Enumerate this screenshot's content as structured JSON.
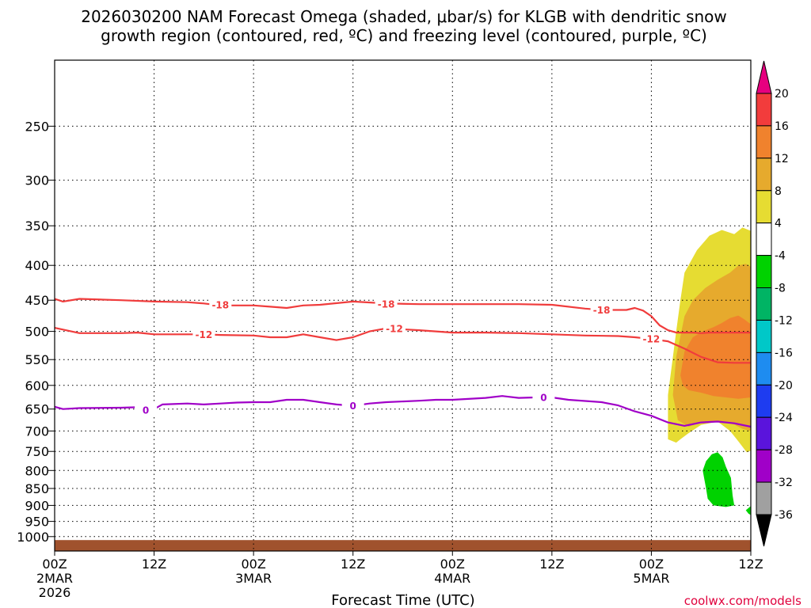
{
  "chart_data": {
    "type": "time-height-contour",
    "title_line1": "2026030200 NAM Forecast Omega (shaded, μbar/s) for KLGB with dendritic snow",
    "title_line2": "growth region (contoured, red, ºC) and freezing level (contoured, purple, ºC)",
    "xlabel": "Forecast Time (UTC)",
    "credit": "coolwx.com/models",
    "x_range_hours": [
      0,
      84
    ],
    "y_scale": "log-pressure",
    "y_range_hpa": [
      1050,
      200
    ],
    "y_ticks": [
      250,
      300,
      350,
      400,
      450,
      500,
      550,
      600,
      650,
      700,
      750,
      800,
      850,
      900,
      950,
      1000
    ],
    "x_ticks": [
      {
        "hour": 0,
        "line1": "00Z",
        "line2": "2MAR",
        "line3": "2026"
      },
      {
        "hour": 12,
        "line1": "12Z",
        "line2": "",
        "line3": ""
      },
      {
        "hour": 24,
        "line1": "00Z",
        "line2": "3MAR",
        "line3": ""
      },
      {
        "hour": 36,
        "line1": "12Z",
        "line2": "",
        "line3": ""
      },
      {
        "hour": 48,
        "line1": "00Z",
        "line2": "4MAR",
        "line3": ""
      },
      {
        "hour": 60,
        "line1": "12Z",
        "line2": "",
        "line3": ""
      },
      {
        "hour": 72,
        "line1": "00Z",
        "line2": "5MAR",
        "line3": ""
      },
      {
        "hour": 84,
        "line1": "12Z",
        "line2": "",
        "line3": ""
      }
    ],
    "grid": true,
    "colorbar": {
      "labels": [
        "20",
        "16",
        "12",
        "8",
        "4",
        "-4",
        "-8",
        "-12",
        "-16",
        "-20",
        "-24",
        "-28",
        "-32",
        "-36"
      ],
      "bins": [
        {
          "from": 16,
          "to": 20,
          "color": "#f23c3c"
        },
        {
          "from": 12,
          "to": 16,
          "color": "#f0822d"
        },
        {
          "from": 8,
          "to": 12,
          "color": "#e6aa2d"
        },
        {
          "from": 4,
          "to": 8,
          "color": "#e6dc32"
        },
        {
          "from": -4,
          "to": 4,
          "color": "#ffffff"
        },
        {
          "from": -8,
          "to": -4,
          "color": "#00d200"
        },
        {
          "from": -12,
          "to": -8,
          "color": "#00b464"
        },
        {
          "from": -16,
          "to": -12,
          "color": "#00c8c8"
        },
        {
          "from": -20,
          "to": -16,
          "color": "#1e8cf0"
        },
        {
          "from": -24,
          "to": -20,
          "color": "#1e3cf0"
        },
        {
          "from": -28,
          "to": -24,
          "color": "#5a14dc"
        },
        {
          "from": -32,
          "to": -28,
          "color": "#a000c8"
        },
        {
          "from": -36,
          "to": -32,
          "color": "#a0a0a0"
        }
      ],
      "top_arrow_color": "#e6007f",
      "bottom_arrow_color": "#000000"
    },
    "contours": [
      {
        "name": "-18",
        "color": "#f03c3c",
        "label": "-18",
        "label_at": [
          [
            20,
            457
          ],
          [
            40,
            456
          ],
          [
            66,
            465
          ]
        ],
        "points": [
          [
            0,
            448
          ],
          [
            1,
            452
          ],
          [
            3,
            448
          ],
          [
            8,
            450
          ],
          [
            12,
            452
          ],
          [
            16,
            453
          ],
          [
            18,
            455
          ],
          [
            20,
            458
          ],
          [
            24,
            458
          ],
          [
            26,
            460
          ],
          [
            28,
            462
          ],
          [
            30,
            458
          ],
          [
            32,
            457
          ],
          [
            36,
            452
          ],
          [
            40,
            455
          ],
          [
            44,
            456
          ],
          [
            48,
            456
          ],
          [
            52,
            456
          ],
          [
            56,
            456
          ],
          [
            60,
            457
          ],
          [
            64,
            463
          ],
          [
            66,
            465
          ],
          [
            69,
            465
          ],
          [
            70,
            462
          ],
          [
            71,
            466
          ],
          [
            72,
            475
          ],
          [
            73,
            490
          ],
          [
            74,
            498
          ],
          [
            75,
            502
          ],
          [
            76,
            502
          ],
          [
            77,
            502
          ],
          [
            78,
            503
          ],
          [
            79,
            502
          ],
          [
            80,
            502
          ],
          [
            84,
            502
          ]
        ]
      },
      {
        "name": "-12",
        "color": "#f03c3c",
        "label": "-12",
        "label_at": [
          [
            18,
            505
          ],
          [
            41,
            495
          ],
          [
            72,
            513
          ]
        ],
        "points": [
          [
            0,
            494
          ],
          [
            1,
            497
          ],
          [
            3,
            503
          ],
          [
            8,
            503
          ],
          [
            10,
            502
          ],
          [
            12,
            505
          ],
          [
            16,
            505
          ],
          [
            18,
            505
          ],
          [
            20,
            506
          ],
          [
            24,
            507
          ],
          [
            26,
            510
          ],
          [
            28,
            510
          ],
          [
            30,
            505
          ],
          [
            32,
            510
          ],
          [
            34,
            515
          ],
          [
            36,
            510
          ],
          [
            38,
            500
          ],
          [
            40,
            495
          ],
          [
            44,
            498
          ],
          [
            48,
            502
          ],
          [
            52,
            502
          ],
          [
            56,
            503
          ],
          [
            60,
            505
          ],
          [
            64,
            507
          ],
          [
            68,
            508
          ],
          [
            70,
            510
          ],
          [
            72,
            513
          ],
          [
            74,
            517
          ],
          [
            76,
            530
          ],
          [
            78,
            545
          ],
          [
            80,
            555
          ],
          [
            82,
            556
          ],
          [
            84,
            556
          ]
        ]
      },
      {
        "name": "0",
        "color": "#a000c8",
        "label": "0",
        "label_at": [
          [
            11,
            652
          ],
          [
            36,
            643
          ],
          [
            59,
            625
          ]
        ],
        "points": [
          [
            0,
            645
          ],
          [
            1,
            650
          ],
          [
            3,
            648
          ],
          [
            8,
            647
          ],
          [
            10,
            646
          ],
          [
            11,
            652
          ],
          [
            12,
            650
          ],
          [
            13,
            640
          ],
          [
            16,
            638
          ],
          [
            18,
            640
          ],
          [
            20,
            638
          ],
          [
            22,
            636
          ],
          [
            24,
            635
          ],
          [
            26,
            635
          ],
          [
            28,
            630
          ],
          [
            30,
            630
          ],
          [
            32,
            635
          ],
          [
            34,
            640
          ],
          [
            36,
            643
          ],
          [
            38,
            638
          ],
          [
            40,
            635
          ],
          [
            44,
            632
          ],
          [
            46,
            630
          ],
          [
            48,
            630
          ],
          [
            52,
            626
          ],
          [
            54,
            622
          ],
          [
            56,
            626
          ],
          [
            58,
            625
          ],
          [
            60,
            625
          ],
          [
            62,
            630
          ],
          [
            66,
            635
          ],
          [
            68,
            642
          ],
          [
            70,
            655
          ],
          [
            72,
            665
          ],
          [
            74,
            680
          ],
          [
            76,
            688
          ],
          [
            78,
            680
          ],
          [
            80,
            678
          ],
          [
            82,
            682
          ],
          [
            84,
            690
          ]
        ]
      }
    ],
    "shaded_regions": [
      {
        "level": "4 to 8",
        "color": "#e6dc32",
        "polygon": [
          [
            74.0,
            720
          ],
          [
            74.0,
            620
          ],
          [
            75.0,
            500
          ],
          [
            75.5,
            450
          ],
          [
            76.0,
            410
          ],
          [
            77.5,
            380
          ],
          [
            79.0,
            362
          ],
          [
            80.5,
            355
          ],
          [
            82.0,
            360
          ],
          [
            83.0,
            352
          ],
          [
            84.0,
            356
          ],
          [
            84.0,
            748
          ],
          [
            83.5,
            752
          ],
          [
            82.5,
            725
          ],
          [
            81.5,
            700
          ],
          [
            80.0,
            678
          ],
          [
            78.0,
            686
          ],
          [
            76.5,
            705
          ],
          [
            75.5,
            720
          ],
          [
            75.0,
            728
          ]
        ]
      },
      {
        "level": "8 to 12",
        "color": "#e6aa2d",
        "polygon": [
          [
            74.6,
            620
          ],
          [
            75.0,
            545
          ],
          [
            76.0,
            475
          ],
          [
            77.0,
            450
          ],
          [
            78.5,
            432
          ],
          [
            80.0,
            420
          ],
          [
            81.5,
            410
          ],
          [
            82.5,
            400
          ],
          [
            83.4,
            398
          ],
          [
            84.0,
            402
          ],
          [
            84.0,
            700
          ],
          [
            83.0,
            695
          ],
          [
            82.0,
            685
          ],
          [
            80.0,
            676
          ],
          [
            78.0,
            680
          ],
          [
            76.5,
            690
          ],
          [
            75.2,
            675
          ]
        ]
      },
      {
        "level": "12 to 16",
        "color": "#f0822d",
        "polygon": [
          [
            75.5,
            580
          ],
          [
            76.0,
            535
          ],
          [
            77.0,
            510
          ],
          [
            78.2,
            500
          ],
          [
            79.5,
            493
          ],
          [
            80.5,
            486
          ],
          [
            81.5,
            478
          ],
          [
            82.5,
            474
          ],
          [
            83.2,
            480
          ],
          [
            84.0,
            488
          ],
          [
            84.0,
            625
          ],
          [
            82.5,
            628
          ],
          [
            81.0,
            625
          ],
          [
            79.5,
            622
          ],
          [
            78.0,
            615
          ],
          [
            76.5,
            610
          ],
          [
            75.8,
            600
          ]
        ]
      },
      {
        "level": "-8 to -4",
        "color": "#00d200",
        "polygon": [
          [
            78.2,
            800
          ],
          [
            78.6,
            775
          ],
          [
            79.3,
            757
          ],
          [
            80.0,
            752
          ],
          [
            80.6,
            765
          ],
          [
            81.0,
            790
          ],
          [
            81.6,
            820
          ],
          [
            81.8,
            870
          ],
          [
            82.0,
            900
          ],
          [
            81.0,
            905
          ],
          [
            79.5,
            900
          ],
          [
            78.8,
            880
          ],
          [
            78.6,
            850
          ],
          [
            78.4,
            825
          ]
        ]
      },
      {
        "level": "-8 to -4",
        "color": "#00d200",
        "polygon": [
          [
            83.4,
            915
          ],
          [
            84.0,
            902
          ],
          [
            84.0,
            930
          ],
          [
            83.7,
            925
          ]
        ]
      }
    ],
    "terrain": {
      "color": "#a0522d",
      "top_hpa": 1012
    }
  }
}
